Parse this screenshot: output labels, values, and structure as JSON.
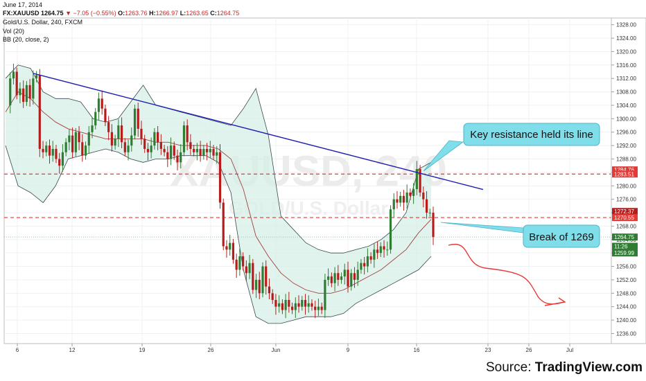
{
  "header": {
    "date": "June 17, 2014",
    "symbol": "FX:XAUUSD",
    "last": "1264.75",
    "change": "−7.05 (−0.55%)",
    "o_label": "O:",
    "o": "1263.76",
    "h_label": "H:",
    "h": "1266.97",
    "l_label": "L:",
    "l": "1263.65",
    "c_label": "C:",
    "c": "1264.75",
    "description": "Gold/U.S. Dollar, 240, FXCM",
    "indicator_vol": "Vol (20)",
    "indicator_bb": "BB (20, close, 2)"
  },
  "watermark": {
    "symbol": "XAUUSD, 240",
    "name": "GOLD/U.S. Dollar"
  },
  "colors": {
    "up": "#2e7d32",
    "down": "#b71c1c",
    "trendline": "#1f1fb4",
    "level": "#e53935",
    "bb_line": "#37474f",
    "bb_fill": "#d7efe7",
    "basis": "#a04040",
    "channel": "#c9e2b8",
    "callout_bg": "#80deea",
    "arrow": "#e53935"
  },
  "chart_data": {
    "type": "candlestick",
    "title": "Gold/U.S. Dollar, 240, FXCM",
    "x_tick_labels": [
      "6",
      "12",
      "19",
      "26",
      "Jun",
      "9",
      "16",
      "23",
      "26",
      "Jul"
    ],
    "ylim": [
      1233,
      1330
    ],
    "y_ticks": [
      1236,
      1240,
      1244,
      1248,
      1252,
      1256,
      1260,
      1264,
      1268,
      1272,
      1276,
      1280,
      1284,
      1288,
      1292,
      1296,
      1300,
      1304,
      1308,
      1312,
      1316,
      1320,
      1324,
      1328
    ],
    "y_tick_labels": [
      "1236.00",
      "1240.00",
      "1244.00",
      "1248.00",
      "1252.00",
      "1256.00",
      "1260.00",
      "1264.00",
      "1268.00",
      "1272.00",
      "1276.00",
      "1280.00",
      "1284.00",
      "1288.00",
      "1292.00",
      "1296.00",
      "1300.00",
      "1304.00",
      "1308.00",
      "1312.00",
      "1316.00",
      "1320.00",
      "1324.00",
      "1328.00"
    ],
    "close_path": [
      1304,
      1312,
      1314,
      1307,
      1309,
      1305,
      1310,
      1306,
      1312,
      1313,
      1291,
      1290,
      1292,
      1289,
      1291,
      1288,
      1286,
      1290,
      1293,
      1295,
      1290,
      1296,
      1293,
      1289,
      1292,
      1296,
      1298,
      1302,
      1306,
      1303,
      1299,
      1296,
      1292,
      1294,
      1298,
      1293,
      1290,
      1292,
      1295,
      1303,
      1297,
      1294,
      1291,
      1290,
      1292,
      1296,
      1293,
      1291,
      1290,
      1288,
      1292,
      1289,
      1287,
      1290,
      1298,
      1293,
      1291,
      1290,
      1291,
      1289,
      1291,
      1290,
      1291,
      1289,
      1290,
      1275,
      1262,
      1261,
      1263,
      1258,
      1255,
      1259,
      1256,
      1254,
      1257,
      1249,
      1252,
      1248,
      1256,
      1250,
      1248,
      1246,
      1244,
      1245,
      1243,
      1246,
      1244,
      1243,
      1245,
      1244,
      1246,
      1244,
      1245,
      1244,
      1243,
      1244,
      1243,
      1252,
      1253,
      1251,
      1254,
      1252,
      1253,
      1255,
      1250,
      1254,
      1252,
      1255,
      1257,
      1256,
      1259,
      1258,
      1261,
      1260,
      1262,
      1261,
      1261,
      1273,
      1276,
      1275,
      1277,
      1275,
      1278,
      1277,
      1279,
      1285,
      1278,
      1276,
      1272,
      1272,
      1264.75
    ],
    "bollinger": {
      "period": 20,
      "stddev": 2,
      "upper": [
        1312,
        1316,
        1315,
        1308,
        1306,
        1306,
        1305,
        1300,
        1299,
        1300,
        1305,
        1310,
        1304,
        1303,
        1302,
        1301,
        1300,
        1299,
        1298,
        1303,
        1309,
        1295,
        1271,
        1267,
        1263,
        1261,
        1260,
        1260,
        1261,
        1262,
        1264,
        1267,
        1272,
        1285,
        1287
      ],
      "lower": [
        1292,
        1280,
        1278,
        1275,
        1280,
        1288,
        1289,
        1290,
        1291,
        1290,
        1288,
        1287,
        1288,
        1288,
        1289,
        1289,
        1289,
        1287,
        1278,
        1255,
        1241,
        1239,
        1239,
        1240,
        1241,
        1241,
        1241,
        1242,
        1245,
        1247,
        1249,
        1251,
        1253,
        1255,
        1259
      ],
      "basis": [
        1302,
        1308,
        1306,
        1302,
        1299,
        1297,
        1296,
        1295,
        1294,
        1294,
        1294,
        1294,
        1293,
        1293,
        1292,
        1292,
        1292,
        1291,
        1288,
        1279,
        1265,
        1259,
        1254,
        1251,
        1249,
        1248,
        1248,
        1249,
        1251,
        1253,
        1255,
        1258,
        1261,
        1266,
        1270
      ]
    },
    "price_labels": [
      {
        "value": 1284.76,
        "text": "1284.76",
        "color": "#e53935"
      },
      {
        "value": 1283.51,
        "text": "1283.51",
        "color": "#e53935"
      },
      {
        "value": 1272.37,
        "text": "1272.37",
        "color": "#b71c1c"
      },
      {
        "value": 1270.55,
        "text": "1270.55",
        "color": "#e53935"
      },
      {
        "value": 1264.75,
        "text": "1264.75",
        "color": "#2e7d32"
      },
      {
        "value": 1262.0,
        "text": "11:26",
        "color": "#2e7d32"
      },
      {
        "value": 1259.99,
        "text": "1259.99",
        "color": "#2e7d32"
      }
    ],
    "horizontal_levels": [
      1283.51,
      1270.55
    ],
    "trendline": {
      "from": [
        6.5,
        1313.5
      ],
      "to": [
        24,
        1278.9
      ]
    },
    "channel": {
      "lower": [
        [
          12.0,
          1240.5
        ],
        [
          17.5,
          1278
        ]
      ],
      "upper": [
        [
          12.0,
          1257
        ],
        [
          17.5,
          1290
        ]
      ]
    },
    "annotations": [
      {
        "name": "resistance-callout",
        "text": "Key resistance held its line"
      },
      {
        "name": "break-callout",
        "text": "Break of 1269"
      }
    ]
  },
  "footer": {
    "source_prefix": "Source: ",
    "source_name": "TradingView.com"
  }
}
